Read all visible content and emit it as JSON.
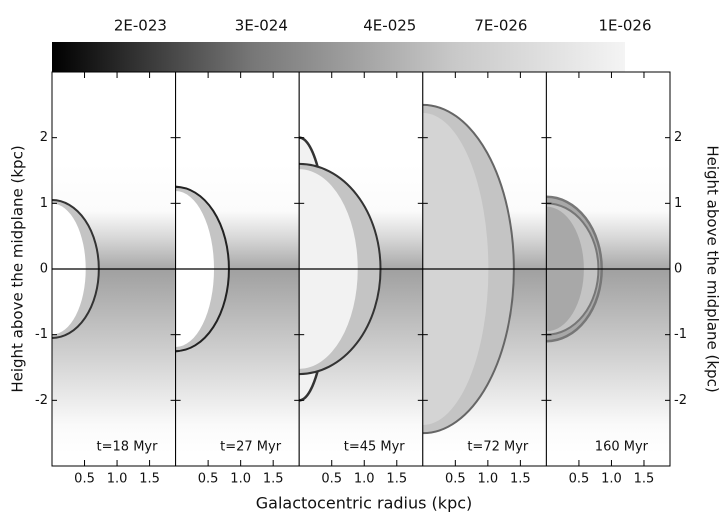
{
  "chart_data": {
    "type": "image-panels",
    "colorbar": {
      "scale": "log",
      "lim": [
        8e-23,
        1e-26
      ],
      "ticks": [
        {
          "value": 2e-23,
          "label": "2E-023"
        },
        {
          "value": 3e-24,
          "label": "3E-024"
        },
        {
          "value": 4e-25,
          "label": "4E-025"
        },
        {
          "value": 7e-26,
          "label": "7E-026"
        },
        {
          "value": 1e-26,
          "label": "1E-026"
        }
      ]
    },
    "panels": [
      {
        "label": "t=18 Myr"
      },
      {
        "label": "t=27 Myr"
      },
      {
        "label": "t=45 Myr"
      },
      {
        "label": "t=72 Myr"
      },
      {
        "label": "160 Myr"
      }
    ],
    "xlabel": "Galactocentric radius (kpc)",
    "ylabel": "Height above the midplane (kpc)",
    "xlim": [
      0,
      1.9
    ],
    "ylim": [
      -3,
      3
    ],
    "xticks": [
      0.5,
      {
        "value": 1,
        "label": "1.0"
      },
      1.5
    ],
    "yticks": [
      -2,
      -1,
      0,
      1,
      2
    ]
  }
}
